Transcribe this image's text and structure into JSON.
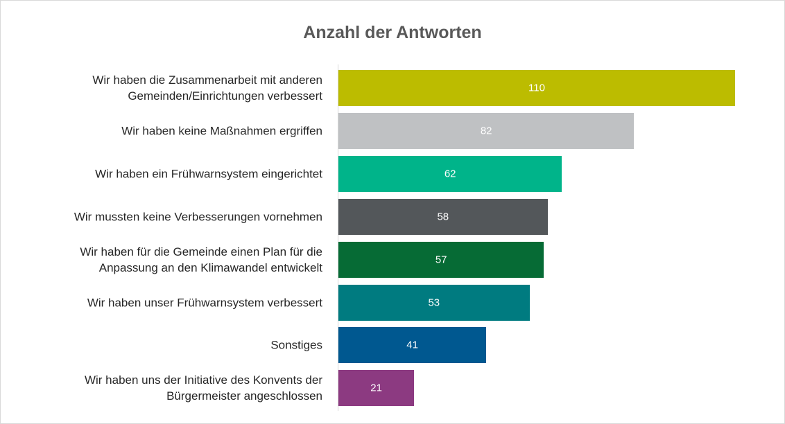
{
  "chart_data": {
    "type": "bar",
    "orientation": "horizontal",
    "title": "Anzahl der Antworten",
    "categories": [
      "Wir haben die Zusammenarbeit mit anderen\nGemeinden/Einrichtungen verbessert",
      "Wir haben keine Maßnahmen ergriffen",
      "Wir haben ein Frühwarnsystem eingerichtet",
      "Wir mussten keine Verbesserungen vornehmen",
      "Wir haben für die Gemeinde einen Plan für die\nAnpassung an den Klimawandel entwickelt",
      "Wir haben unser Frühwarnsystem verbessert",
      "Sonstiges",
      "Wir haben uns der Initiative des Konvents der\nBürgermeister angeschlossen"
    ],
    "values": [
      110,
      82,
      62,
      58,
      57,
      53,
      41,
      21
    ],
    "colors": [
      "#bcbc00",
      "#bfc1c3",
      "#00b48a",
      "#53575a",
      "#066b35",
      "#007b80",
      "#005890",
      "#8c3a81"
    ]
  }
}
